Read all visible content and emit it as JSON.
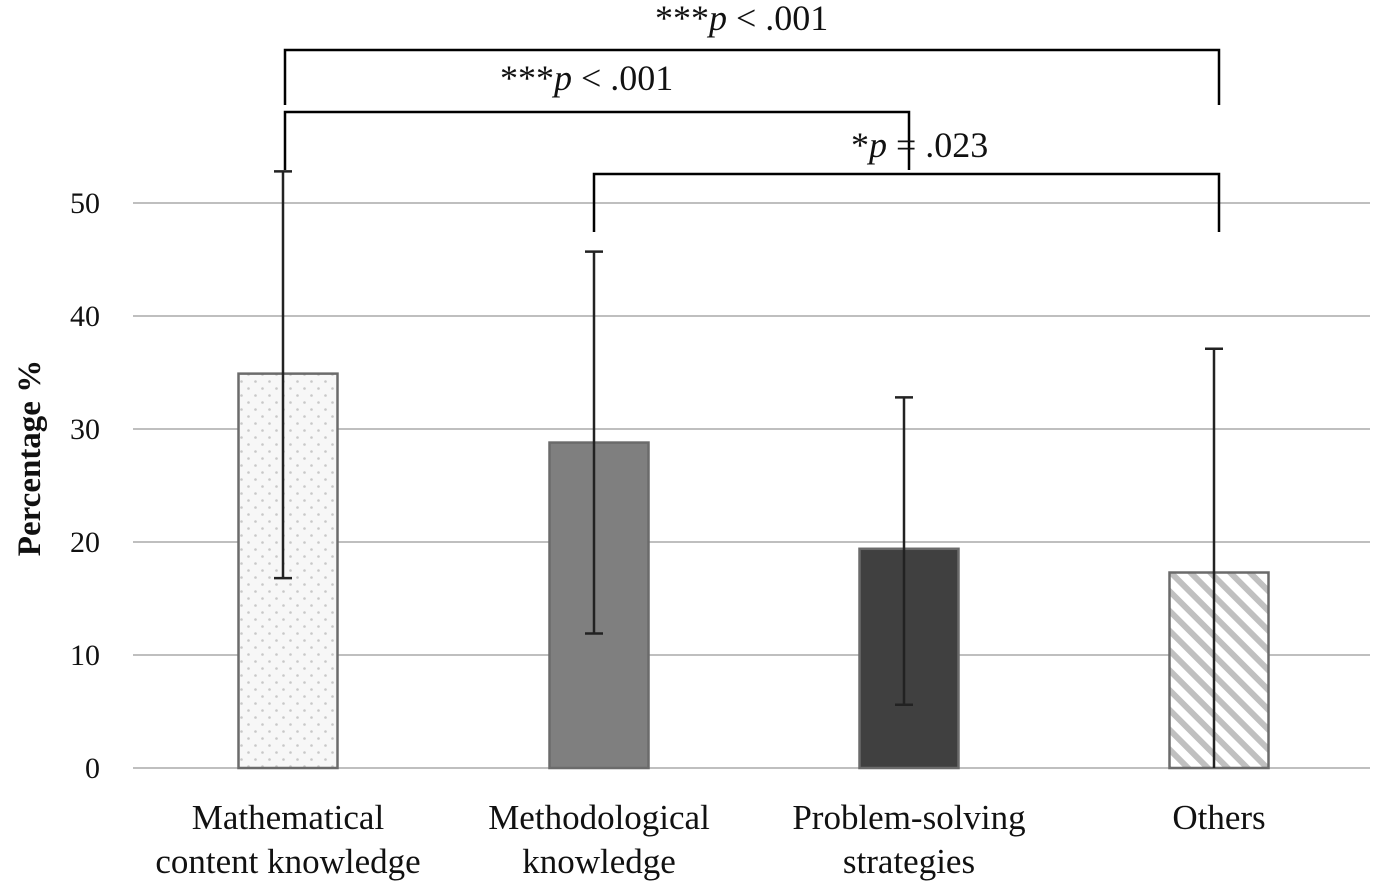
{
  "chart_data": {
    "type": "bar",
    "ylabel": "Percentage %",
    "xlabel": "",
    "ylim": [
      0,
      50
    ],
    "yticks": [
      0,
      10,
      20,
      30,
      40,
      50
    ],
    "grid": true,
    "categories": [
      [
        "Mathematical",
        "content knowledge"
      ],
      [
        "Methodological",
        "knowledge"
      ],
      [
        "Problem-solving",
        "strategies"
      ],
      [
        "Others"
      ]
    ],
    "values": [
      34.9,
      28.8,
      19.4,
      17.3
    ],
    "error_bars": [
      {
        "low": 16.8,
        "high": 52.8
      },
      {
        "low": 11.9,
        "high": 45.7
      },
      {
        "low": 5.6,
        "high": 32.8
      },
      {
        "low": 0,
        "high": 37.1
      }
    ],
    "fills": [
      "dotted",
      "solid-gray",
      "solid-dark",
      "diagonal-hatch"
    ],
    "colors": {
      "grid": "#bfbfbf",
      "bar_border": "#6b6b6b",
      "dot_fill": "#f7f7f7",
      "dot": "#c8c8c8",
      "gray_bar": "#7f7f7f",
      "dark_bar": "#404040",
      "hatch": "#c0c0c0",
      "error": "#222222",
      "bracket": "#000000"
    },
    "significance": [
      {
        "from": 0,
        "to": 3,
        "prefix": "***",
        "p": "p",
        "rest": " < .001"
      },
      {
        "from": 0,
        "to": 2,
        "prefix": "***",
        "p": "p",
        "rest": " < .001"
      },
      {
        "from": 1,
        "to": 3,
        "prefix": "*",
        "p": "p",
        "rest": " = .023"
      }
    ]
  }
}
